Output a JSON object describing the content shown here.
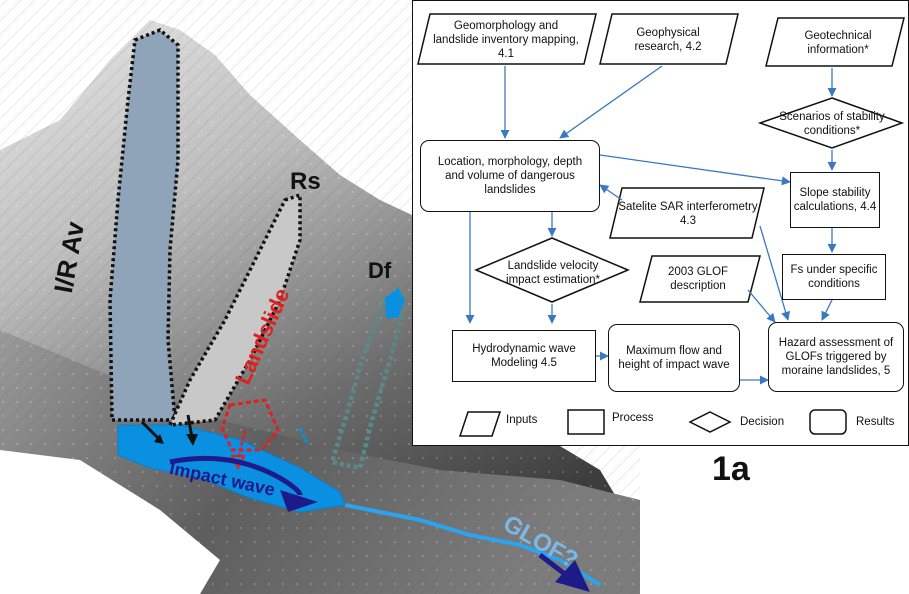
{
  "figure_label": "1a",
  "photo_labels": {
    "ir_av": "I/R Av",
    "rs": "Rs",
    "df": "Df",
    "landslide": "Landslide",
    "impact_wave": "Impact wave",
    "glof": "GLOF?"
  },
  "flowchart": {
    "inputs": {
      "geomorphology": "Geomorphology and landslide inventory mapping, 4.1",
      "geophysical": "Geophysical research, 4.2",
      "geotechnical": "Geotechnical information*",
      "sar": "Satelite SAR interferometry 4.3",
      "glof2003": "2003 GLOF description"
    },
    "processes": {
      "location": "Location, morphology, depth and volume of dangerous landslides",
      "slope_stability": "Slope stability calculations, 4.4",
      "fs": "Fs under specific conditions",
      "hydrodynamic": "Hydrodynamic wave Modeling 4.5",
      "max_flow": "Maximum flow and height of impact wave"
    },
    "decisions": {
      "scenarios": "Scenarios of stability conditions*",
      "velocity": "Landslide velocity impact estimation*"
    },
    "results": {
      "hazard": "Hazard assessment of GLOFs triggered by moraine landslides, 5"
    },
    "legend": {
      "inputs": "Inputs",
      "process": "Process",
      "decision": "Decision",
      "results": "Results"
    }
  },
  "colors": {
    "arrow": "#3a78c2",
    "lake": "#0b8fe0",
    "impact_wave": "#1e1a8a",
    "landslide_red": "#e02020",
    "glof_text": "#7ab8e8",
    "rs_fill": "#c8c8c8",
    "irav_fill": "#8fa4b8",
    "df_fill": "#5a8a88"
  }
}
